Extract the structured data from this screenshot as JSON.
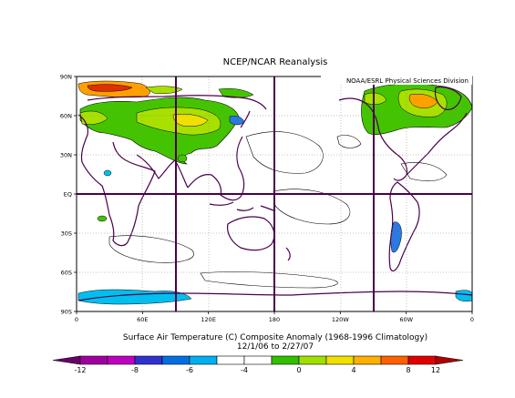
{
  "header": {
    "title": "NCEP/NCAR Reanalysis"
  },
  "map": {
    "credit": "NOAA/ESRL Physical Sciences Division",
    "lat_ticks": [
      "90N",
      "60N",
      "30N",
      "EQ",
      "30S",
      "60S",
      "90S"
    ],
    "lon_ticks": [
      "0",
      "60E",
      "120E",
      "180",
      "120W",
      "60W",
      "0"
    ]
  },
  "caption": {
    "line1": "Surface Air Temperature (C) Composite Anomaly (1968-1996 Climatology)",
    "line2": "12/1/06  to 2/27/07"
  },
  "colorbar": {
    "colors": [
      "#6a006a",
      "#a000a0",
      "#c000c0",
      "#3030d0",
      "#0070e0",
      "#00b0f0",
      "#ffffff",
      "#ffffff",
      "#30c000",
      "#a0e000",
      "#f0e000",
      "#ffb000",
      "#ff6000",
      "#e00000",
      "#b00000"
    ],
    "labels": [
      "-12",
      "-8",
      "-6",
      "-4",
      "0",
      "4",
      "8",
      "12"
    ]
  },
  "colors": {
    "pos_green": "#44c400",
    "pos_yellowgreen": "#a8e000",
    "pos_yellow": "#f0e000",
    "pos_orange": "#ffa000",
    "pos_red": "#e03000",
    "neg_cyan": "#00c0f0",
    "neg_blue": "#2a7ae0",
    "coast": "#4a004a"
  }
}
